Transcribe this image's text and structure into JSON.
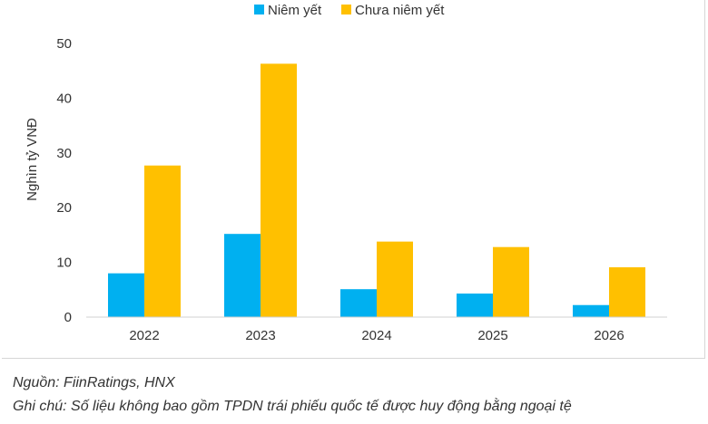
{
  "chart_data": {
    "type": "bar",
    "categories": [
      "2022",
      "2023",
      "2024",
      "2025",
      "2026"
    ],
    "series": [
      {
        "name": "Niêm yết",
        "color": "#00b0f0",
        "values": [
          8.0,
          15.2,
          5.1,
          4.3,
          2.2
        ]
      },
      {
        "name": "Chưa niêm yết",
        "color": "#ffc000",
        "values": [
          27.7,
          46.3,
          13.8,
          12.8,
          9.1
        ]
      }
    ],
    "ylabel": "Nghìn tỷ VNĐ",
    "ylim": [
      0,
      50
    ],
    "yticks": [
      0,
      10,
      20,
      30,
      40,
      50
    ],
    "legend": "top",
    "grid": false
  },
  "notes": {
    "source": "Nguồn: FiinRatings, HNX",
    "remark": "Ghi chú: Số liệu không bao gồm TPDN trái phiếu quốc tế được huy động bằng ngoại tệ"
  }
}
